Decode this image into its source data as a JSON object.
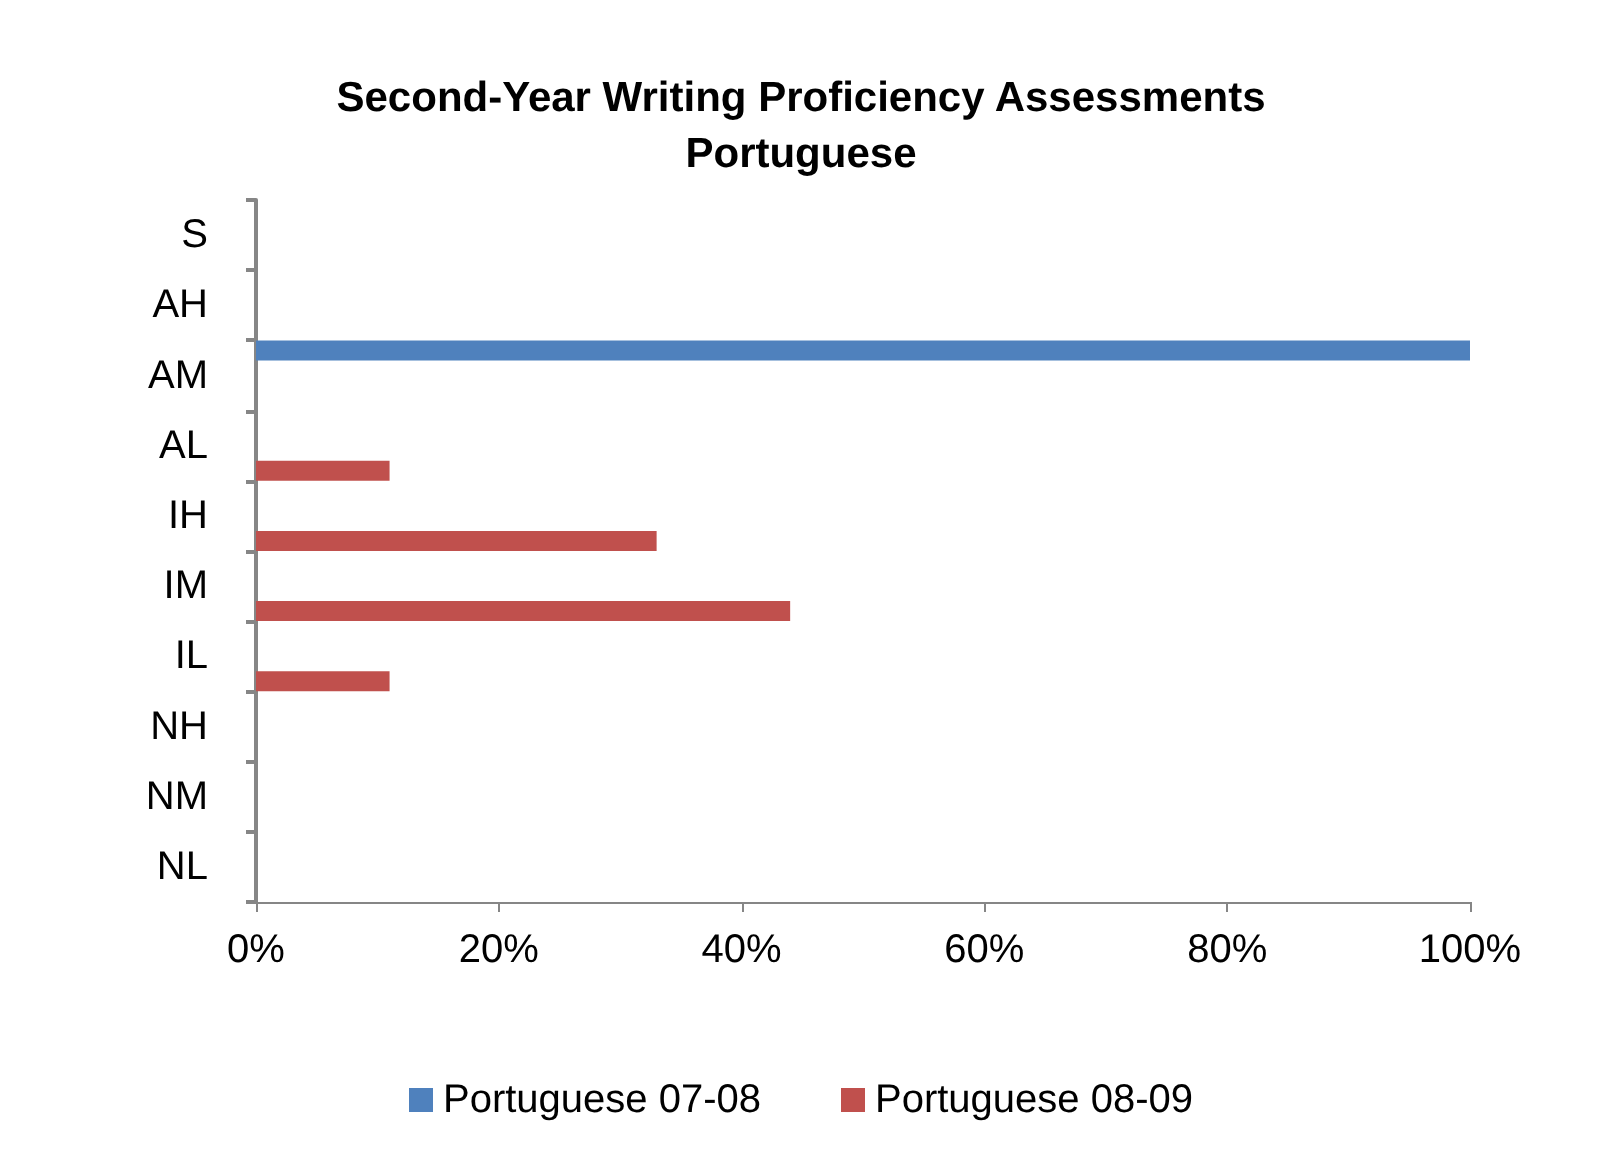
{
  "chart_data": {
    "type": "bar",
    "orientation": "horizontal",
    "title": "Second-Year Writing Proficiency Assessments\nPortuguese",
    "categories": [
      "S",
      "AH",
      "AM",
      "AL",
      "IH",
      "IM",
      "IL",
      "NH",
      "NM",
      "NL"
    ],
    "series": [
      {
        "name": "Portuguese 07-08",
        "color": "#4f81bd",
        "values": [
          0,
          0,
          100,
          0,
          0,
          0,
          0,
          0,
          0,
          0
        ]
      },
      {
        "name": "Portuguese 08-09",
        "color": "#c0504d",
        "values": [
          0,
          0,
          0,
          11,
          33,
          44,
          11,
          0,
          0,
          0
        ]
      }
    ],
    "xlim": [
      0,
      100
    ],
    "xticks": [
      {
        "value": 0,
        "label": "0%"
      },
      {
        "value": 20,
        "label": "20%"
      },
      {
        "value": 40,
        "label": "40%"
      },
      {
        "value": 60,
        "label": "60%"
      },
      {
        "value": 80,
        "label": "80%"
      },
      {
        "value": 100,
        "label": "100%"
      }
    ],
    "grid": false,
    "legend": "bottom"
  }
}
